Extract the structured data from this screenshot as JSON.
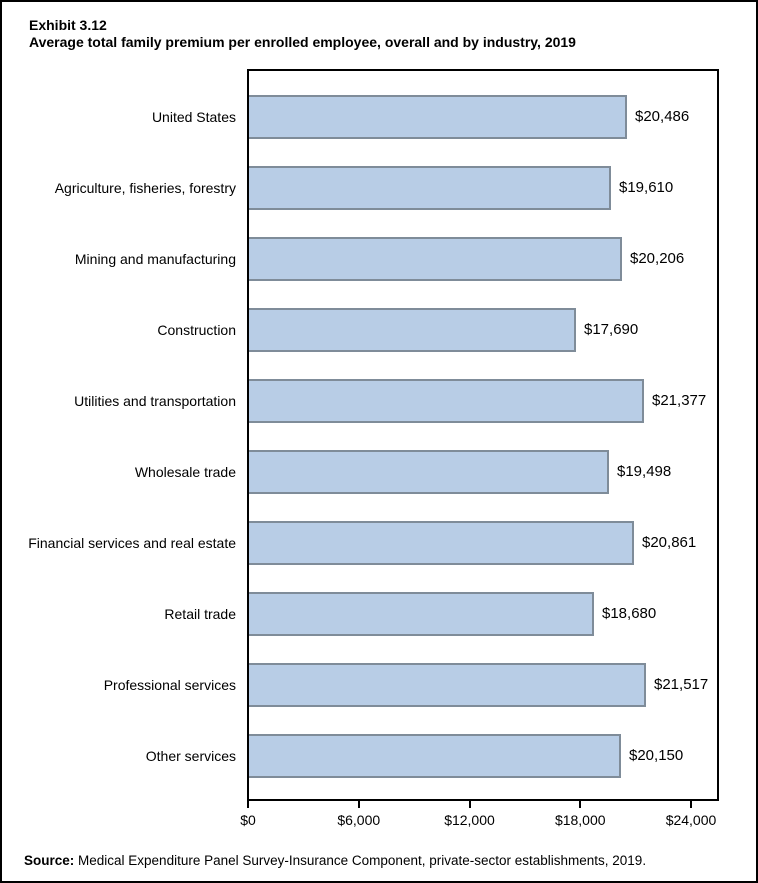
{
  "title": {
    "exhibit": "Exhibit 3.12",
    "heading": "Average total family premium per enrolled employee, overall and by industry, 2019"
  },
  "source": {
    "label": "Source:",
    "text": " Medical Expenditure Panel Survey-Insurance Component, private-sector establishments, 2019."
  },
  "colors": {
    "bar_fill": "#B8CDE6",
    "bar_border": "#7F8C99",
    "plot_frame": "#000000",
    "text": "#000000",
    "background": "#FFFFFF"
  },
  "chart_data": {
    "type": "bar",
    "orientation": "horizontal",
    "title": "Average total family premium per enrolled employee, overall and by industry, 2019",
    "categories": [
      "United States",
      "Agriculture, fisheries, forestry",
      "Mining and manufacturing",
      "Construction",
      "Utilities and transportation",
      "Wholesale trade",
      "Financial services and real estate",
      "Retail trade",
      "Professional services",
      "Other services"
    ],
    "values": [
      20486,
      19610,
      20206,
      17690,
      21377,
      19498,
      20861,
      18680,
      21517,
      20150
    ],
    "value_labels": [
      "$20,486",
      "$19,610",
      "$20,206",
      "$17,690",
      "$21,377",
      "$19,498",
      "$20,861",
      "$18,680",
      "$21,517",
      "$20,150"
    ],
    "x_ticks": [
      0,
      6000,
      12000,
      18000,
      24000
    ],
    "x_tick_labels": [
      "$0",
      "$6,000",
      "$12,000",
      "$18,000",
      "$24,000"
    ],
    "xlabel": "",
    "ylabel": "",
    "xlim": [
      0,
      25600
    ],
    "grid": false,
    "legend": null,
    "value_label_position": "outside-right"
  }
}
